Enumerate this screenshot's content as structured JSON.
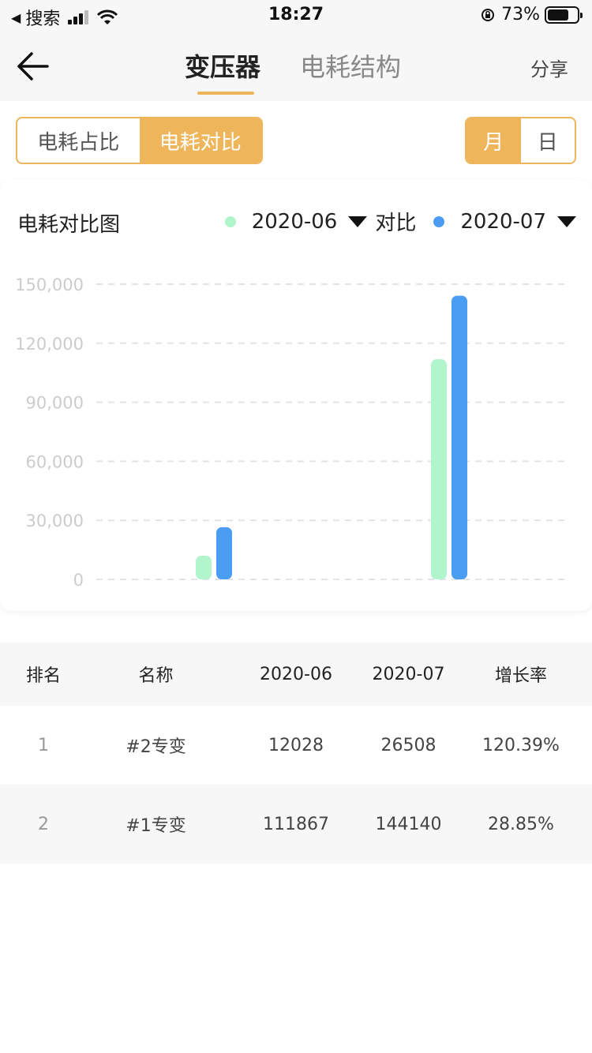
{
  "status_bar": {
    "back_app": "搜索",
    "time": "18:27",
    "battery_pct": "73%",
    "battery_level": 0.73
  },
  "nav": {
    "tab_active": "变压器",
    "tab_inactive": "电耗结构",
    "share": "分享"
  },
  "segments": {
    "ratio": "电耗占比",
    "compare": "电耗对比",
    "month": "月",
    "day": "日"
  },
  "chart_card": {
    "title": "电耗对比图",
    "legend_a": "2020-06",
    "legend_compare": "对比",
    "legend_b": "2020-07",
    "color_a": "#b1f5cd",
    "color_b": "#4a9df2"
  },
  "chart_data": {
    "type": "bar",
    "categories": [
      "#2专变",
      "#1专变"
    ],
    "series": [
      {
        "name": "2020-06",
        "values": [
          12028,
          111867
        ]
      },
      {
        "name": "2020-07",
        "values": [
          26508,
          144140
        ]
      }
    ],
    "ylim": [
      0,
      150000
    ],
    "yticks": [
      "0",
      "30,000",
      "60,000",
      "90,000",
      "120,000",
      "150,000"
    ],
    "grid": true
  },
  "table": {
    "headers": [
      "排名",
      "名称",
      "2020-06",
      "2020-07",
      "增长率"
    ],
    "rows": [
      [
        "1",
        "#2专变",
        "12028",
        "26508",
        "120.39%"
      ],
      [
        "2",
        "#1专变",
        "111867",
        "144140",
        "28.85%"
      ]
    ]
  }
}
